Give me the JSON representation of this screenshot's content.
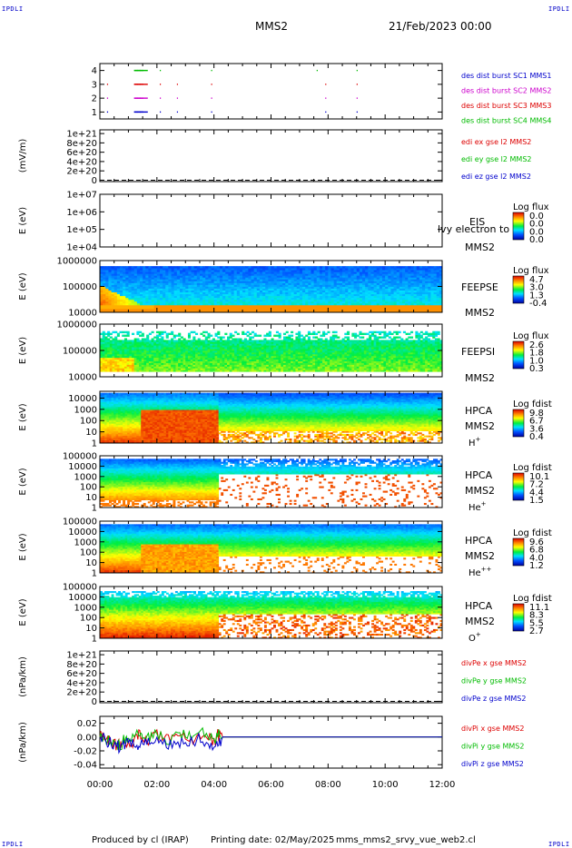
{
  "header": {
    "corner_tl": "IPDLI",
    "corner_tr": "IPDLI",
    "corner_bl": "IPDLI",
    "corner_br": "IPDLI",
    "title": "MMS2",
    "date": "21/Feb/2023 00:00"
  },
  "footer": {
    "produced": "Produced by cl (IRAP)",
    "printing": "Printing date: 02/May/2025",
    "file": "mms_mms2_srvy_vue_web2.cl"
  },
  "colors": {
    "red": "#dd0000",
    "green": "#00bb00",
    "blue": "#0000cc",
    "magenta": "#cc00cc"
  },
  "chart_data": [
    {
      "type": "scatter",
      "title": "",
      "ylabel": "",
      "yticks": [
        "4",
        "3",
        "2",
        "1"
      ],
      "ylim": [
        0.5,
        4.5
      ],
      "legend": [
        "des dist burst SC1 MMS1",
        "des dist burst SC2 MMS2",
        "des dist burst SC3 MMS3",
        "des dist burst SC4 MMS4"
      ],
      "series": [
        {
          "name": "des dist burst SC1 MMS1",
          "y": 1,
          "x_hours": [
            0.25,
            1.2,
            1.3,
            1.4,
            2.1,
            2.7,
            3.9,
            7.9,
            9.0
          ]
        },
        {
          "name": "des dist burst SC2 MMS2",
          "y": 3,
          "x_hours": [
            0.25,
            1.2,
            1.3,
            1.4,
            2.1,
            2.7,
            3.9,
            7.9,
            9.0
          ]
        },
        {
          "name": "des dist burst SC3 MMS3",
          "y": 2,
          "x_hours": [
            0.25,
            1.2,
            1.3,
            1.4,
            2.1,
            2.7,
            3.9,
            7.9,
            9.0
          ]
        },
        {
          "name": "des dist burst SC4 MMS4",
          "y": 4,
          "x_hours": [
            1.2,
            1.3,
            1.4,
            2.1,
            3.9,
            7.6,
            9.0
          ]
        }
      ]
    },
    {
      "type": "line",
      "ylabel": "(mV/m)",
      "yticks": [
        "1e+21",
        "8e+20",
        "6e+20",
        "4e+20",
        "2e+20",
        "0"
      ],
      "ylim": [
        -3e+19,
        1.08e+21
      ],
      "legend": [
        "edi ex gse l2 MMS2",
        "edi ey gse l2 MMS2",
        "edi ez gse l2 MMS2"
      ],
      "zero_line": "dashed"
    },
    {
      "type": "heatmap",
      "ylabel": "E (eV)",
      "yticks": [
        "1e+07",
        "1e+06",
        "1e+05",
        "1e+04"
      ],
      "ylim": [
        10000,
        10000000
      ],
      "yscale": "log",
      "instrument": "EIS",
      "overlay": "lvy electron to",
      "sc": "MMS2",
      "colorbar": {
        "title": "Log flux",
        "ticks": [
          "0.0",
          "0.0",
          "0.0",
          "0.0"
        ]
      }
    },
    {
      "type": "heatmap",
      "ylabel": "E (eV)",
      "yticks": [
        "1000000",
        "100000",
        "10000"
      ],
      "ylim": [
        10000,
        1000000
      ],
      "yscale": "log",
      "instrument": "FEEPSE",
      "sc": "MMS2",
      "colorbar": {
        "title": "Log flux",
        "ticks": [
          "4.7",
          "3.0",
          "1.3",
          "-0.4"
        ]
      }
    },
    {
      "type": "heatmap",
      "ylabel": "E (eV)",
      "yticks": [
        "1000000",
        "100000",
        "10000"
      ],
      "ylim": [
        10000,
        1000000
      ],
      "yscale": "log",
      "instrument": "FEEPSI",
      "sc": "MMS2",
      "colorbar": {
        "title": "Log flux",
        "ticks": [
          "2.6",
          "1.8",
          "1.0",
          "0.3"
        ]
      }
    },
    {
      "type": "heatmap",
      "ylabel": "E (eV)",
      "yticks": [
        "10000",
        "1000",
        "100",
        "10",
        "1"
      ],
      "ylim": [
        1,
        40000
      ],
      "yscale": "log",
      "instrument": "HPCA",
      "sc": "MMS2",
      "species": "H",
      "species_sup": "+",
      "colorbar": {
        "title": "Log fdist",
        "ticks": [
          "9.8",
          "6.7",
          "3.6",
          "0.4"
        ]
      }
    },
    {
      "type": "heatmap",
      "ylabel": "E (eV)",
      "yticks": [
        "100000",
        "10000",
        "1000",
        "100",
        "10",
        "1"
      ],
      "ylim": [
        1,
        100000
      ],
      "yscale": "log",
      "instrument": "HPCA",
      "sc": "MMS2",
      "species": "He",
      "species_sup": "+",
      "colorbar": {
        "title": "Log fdist",
        "ticks": [
          "10.1",
          "7.2",
          "4.4",
          "1.5"
        ]
      }
    },
    {
      "type": "heatmap",
      "ylabel": "E (eV)",
      "yticks": [
        "100000",
        "10000",
        "1000",
        "100",
        "10",
        "1"
      ],
      "ylim": [
        1,
        100000
      ],
      "yscale": "log",
      "instrument": "HPCA",
      "sc": "MMS2",
      "species": "He",
      "species_sup": "++",
      "colorbar": {
        "title": "Log fdist",
        "ticks": [
          "9.6",
          "6.8",
          "4.0",
          "1.2"
        ]
      }
    },
    {
      "type": "heatmap",
      "ylabel": "E (eV)",
      "yticks": [
        "100000",
        "10000",
        "1000",
        "100",
        "10",
        "1"
      ],
      "ylim": [
        1,
        100000
      ],
      "yscale": "log",
      "instrument": "HPCA",
      "sc": "MMS2",
      "species": "O",
      "species_sup": "+",
      "colorbar": {
        "title": "Log fdist",
        "ticks": [
          "11.1",
          "8.3",
          "5.5",
          "2.7"
        ]
      }
    },
    {
      "type": "line",
      "ylabel": "(nPa/km)",
      "yticks": [
        "1e+21",
        "8e+20",
        "6e+20",
        "4e+20",
        "2e+20",
        "0"
      ],
      "ylim": [
        -3e+19,
        1.08e+21
      ],
      "legend": [
        "divPe x gse MMS2",
        "divPe y gse MMS2",
        "divPe z gse MMS2"
      ],
      "zero_line": "dashed"
    },
    {
      "type": "line",
      "ylabel": "(nPa/km)",
      "yticks": [
        "0.02",
        "0.00",
        "-0.02",
        "-0.04"
      ],
      "ylim": [
        -0.045,
        0.03
      ],
      "legend": [
        "divPi x gse MMS2",
        "divPi y gse MMS2",
        "divPi z gse MMS2"
      ],
      "series": [
        {
          "name": "divPi x gse MMS2",
          "x_hours": [
            0,
            0.2,
            0.4,
            0.6,
            0.8,
            1.0,
            1.3,
            1.5,
            1.8,
            2.2,
            2.6,
            3.0,
            3.4,
            3.8,
            4.1,
            4.3,
            5,
            6,
            7,
            8,
            9,
            10,
            11,
            12
          ],
          "values": [
            0.0,
            -0.005,
            -0.01,
            -0.012,
            -0.008,
            -0.006,
            0.004,
            -0.004,
            0.002,
            -0.005,
            0.001,
            -0.003,
            0.002,
            -0.004,
            0.003,
            0.0,
            0.0,
            0.0,
            0.0,
            0.0,
            0.0,
            0.0,
            0.0,
            0.0
          ]
        },
        {
          "name": "divPi y gse MMS2",
          "x_hours": [
            0,
            0.2,
            0.4,
            0.6,
            0.8,
            1.0,
            1.3,
            1.5,
            1.8,
            2.2,
            2.6,
            3.0,
            3.4,
            3.8,
            4.1,
            4.3,
            5,
            6,
            7,
            8,
            9,
            10,
            11,
            12
          ],
          "values": [
            0.0,
            -0.004,
            -0.008,
            -0.01,
            -0.006,
            -0.002,
            0.01,
            -0.002,
            0.006,
            -0.002,
            0.004,
            0.0,
            0.005,
            -0.001,
            0.006,
            0.0,
            0.0,
            0.0,
            0.0,
            0.0,
            0.0,
            0.0,
            0.0,
            0.0
          ]
        },
        {
          "name": "divPi z gse MMS2",
          "x_hours": [
            0,
            0.2,
            0.4,
            0.6,
            0.8,
            1.0,
            1.3,
            1.5,
            1.8,
            2.2,
            2.6,
            3.0,
            3.4,
            3.8,
            4.1,
            4.3,
            5,
            6,
            7,
            8,
            9,
            10,
            11,
            12
          ],
          "values": [
            0.0,
            -0.006,
            -0.012,
            -0.014,
            -0.01,
            -0.008,
            -0.012,
            -0.01,
            -0.008,
            -0.01,
            -0.006,
            -0.008,
            -0.004,
            -0.01,
            -0.006,
            0.0,
            0.0,
            0.0,
            0.0,
            0.0,
            0.0,
            0.0,
            0.0,
            0.0
          ]
        }
      ]
    }
  ],
  "xaxis": {
    "ticks": [
      "00:00",
      "02:00",
      "04:00",
      "06:00",
      "08:00",
      "10:00",
      "12:00"
    ],
    "range_hours": [
      0,
      12
    ]
  }
}
